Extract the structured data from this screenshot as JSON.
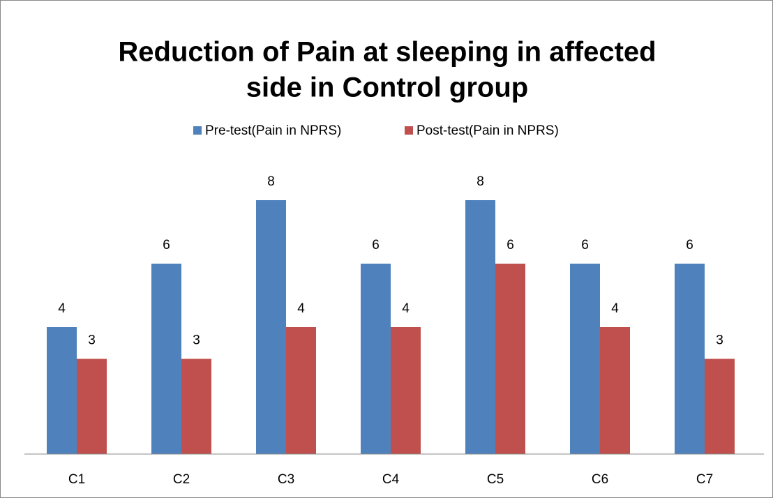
{
  "chart_data": {
    "type": "bar",
    "title": [
      "Reduction of Pain at sleeping in affected",
      "side in Control group"
    ],
    "categories": [
      "C1",
      "C2",
      "C3",
      "C4",
      "C5",
      "C6",
      "C7"
    ],
    "series": [
      {
        "name": "Pre-test(Pain in NPRS)",
        "color": "#4f81bd",
        "values": [
          4,
          6,
          8,
          6,
          8,
          6,
          6
        ]
      },
      {
        "name": "Post-test(Pain in NPRS)",
        "color": "#c0504d",
        "values": [
          3,
          3,
          4,
          4,
          6,
          4,
          3
        ]
      }
    ],
    "ylim": [
      0,
      10
    ],
    "legend": "top"
  }
}
